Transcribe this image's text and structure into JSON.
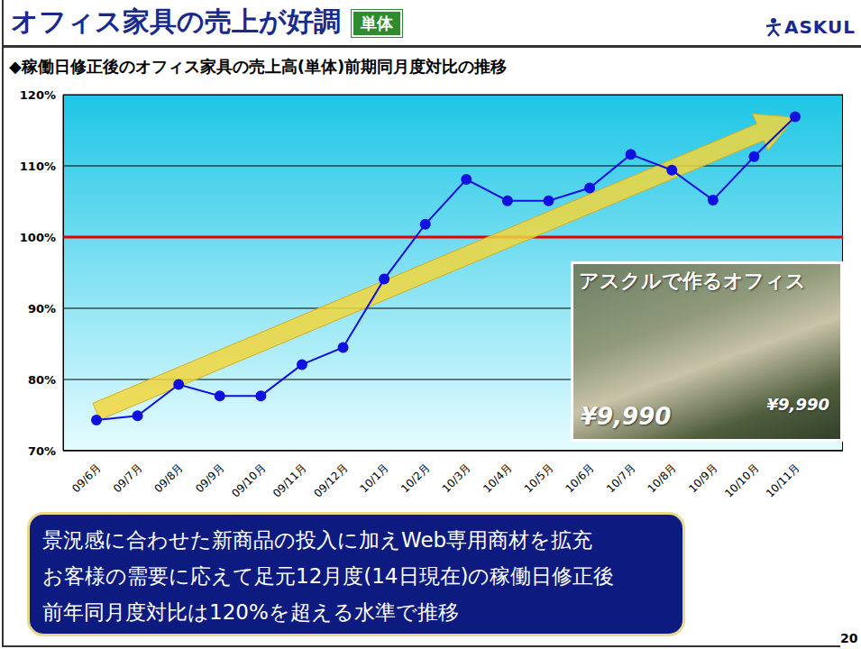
{
  "header": {
    "title": "オフィス家具の売上が好調",
    "badge": "単体",
    "logo": "ASKUL"
  },
  "subtitle": "◆稼働日修正後のオフィス家具の売上高(単体)前期同月度対比の推移",
  "chart_data": {
    "type": "line",
    "categories": [
      "09/6月",
      "09/7月",
      "09/8月",
      "09/9月",
      "09/10月",
      "09/11月",
      "09/12月",
      "10/1月",
      "10/2月",
      "10/3月",
      "10/4月",
      "10/5月",
      "10/6月",
      "10/7月",
      "10/8月",
      "10/9月",
      "10/10月",
      "10/11月"
    ],
    "values": [
      74.3,
      74.9,
      79.3,
      77.7,
      77.7,
      82.1,
      84.5,
      94.1,
      101.8,
      108.1,
      105.1,
      105.1,
      106.9,
      111.6,
      109.4,
      105.2,
      111.3,
      116.9
    ],
    "color": "#1010e0",
    "marker": "circle",
    "ylim": [
      70,
      120
    ],
    "yticks": [
      {
        "value": 70,
        "label": "70%"
      },
      {
        "value": 80,
        "label": "80%"
      },
      {
        "value": 90,
        "label": "90%"
      },
      {
        "value": 100,
        "label": "100%"
      },
      {
        "value": 110,
        "label": "110%"
      },
      {
        "value": 120,
        "label": "120%"
      }
    ],
    "grid": true,
    "reference_line": {
      "value": 100,
      "color": "#e00000"
    },
    "trend_arrow": {
      "start": 75.5,
      "end": 116.8,
      "color": "#f2d63c"
    }
  },
  "inset": {
    "title": "アスクルで作るオフィス",
    "price_labels": [
      "¥9,990",
      "¥9,990"
    ]
  },
  "callout": {
    "lines": [
      "景況感に合わせた新商品の投入に加えWeb専用商材を拡充",
      "お客様の需要に応えて足元12月度(14日現在)の稼働日修正後",
      "前年同月度対比は120%を超える水準で推移"
    ]
  },
  "page_number": "20"
}
